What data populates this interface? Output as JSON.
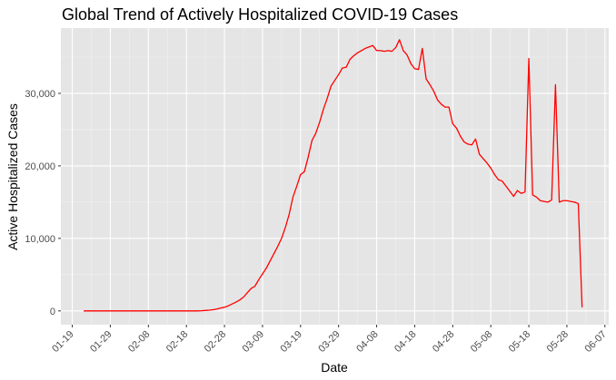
{
  "chart_data": {
    "type": "line",
    "title": "Global Trend of Actively Hospitalized COVID-19 Cases",
    "xlabel": "Date",
    "ylabel": "Active Hospitalized Cases",
    "x_ticks": [
      "01-19",
      "01-29",
      "02-08",
      "02-18",
      "02-28",
      "03-09",
      "03-19",
      "03-29",
      "04-08",
      "04-18",
      "04-28",
      "05-08",
      "05-18",
      "05-28",
      "06-07"
    ],
    "y_ticks": [
      "0",
      "10,000",
      "20,000",
      "30,000"
    ],
    "x_range": [
      "2020-01-16",
      "2020-06-08"
    ],
    "ylim": [
      -1900,
      39000
    ],
    "grid": true,
    "legend": "none",
    "series": [
      {
        "color": "#ff0000",
        "points": [
          [
            "2020-01-22",
            0
          ],
          [
            "2020-02-21",
            0
          ],
          [
            "2020-02-22",
            20
          ],
          [
            "2020-02-23",
            60
          ],
          [
            "2020-02-24",
            100
          ],
          [
            "2020-02-25",
            160
          ],
          [
            "2020-02-26",
            260
          ],
          [
            "2020-02-27",
            400
          ],
          [
            "2020-02-28",
            500
          ],
          [
            "2020-02-29",
            700
          ],
          [
            "2020-03-01",
            950
          ],
          [
            "2020-03-02",
            1200
          ],
          [
            "2020-03-03",
            1500
          ],
          [
            "2020-03-04",
            1900
          ],
          [
            "2020-03-05",
            2500
          ],
          [
            "2020-03-06",
            3100
          ],
          [
            "2020-03-07",
            3400
          ],
          [
            "2020-03-08",
            4300
          ],
          [
            "2020-03-09",
            5100
          ],
          [
            "2020-03-10",
            5900
          ],
          [
            "2020-03-11",
            6900
          ],
          [
            "2020-03-12",
            7900
          ],
          [
            "2020-03-13",
            8900
          ],
          [
            "2020-03-14",
            10000
          ],
          [
            "2020-03-15",
            11500
          ],
          [
            "2020-03-16",
            13300
          ],
          [
            "2020-03-17",
            15700
          ],
          [
            "2020-03-18",
            17200
          ],
          [
            "2020-03-19",
            18800
          ],
          [
            "2020-03-20",
            19200
          ],
          [
            "2020-03-21",
            21200
          ],
          [
            "2020-03-22",
            23500
          ],
          [
            "2020-03-23",
            24500
          ],
          [
            "2020-03-24",
            26000
          ],
          [
            "2020-03-25",
            27800
          ],
          [
            "2020-03-26",
            29300
          ],
          [
            "2020-03-27",
            31000
          ],
          [
            "2020-03-28",
            31800
          ],
          [
            "2020-03-29",
            32600
          ],
          [
            "2020-03-30",
            33500
          ],
          [
            "2020-03-31",
            33600
          ],
          [
            "2020-04-01",
            34700
          ],
          [
            "2020-04-02",
            35200
          ],
          [
            "2020-04-03",
            35600
          ],
          [
            "2020-04-04",
            35900
          ],
          [
            "2020-04-05",
            36200
          ],
          [
            "2020-04-06",
            36400
          ],
          [
            "2020-04-07",
            36600
          ],
          [
            "2020-04-08",
            35900
          ],
          [
            "2020-04-09",
            35900
          ],
          [
            "2020-04-10",
            35800
          ],
          [
            "2020-04-11",
            35900
          ],
          [
            "2020-04-12",
            35800
          ],
          [
            "2020-04-13",
            36300
          ],
          [
            "2020-04-14",
            37400
          ],
          [
            "2020-04-15",
            35900
          ],
          [
            "2020-04-16",
            35300
          ],
          [
            "2020-04-17",
            34100
          ],
          [
            "2020-04-18",
            33400
          ],
          [
            "2020-04-19",
            33300
          ],
          [
            "2020-04-20",
            36200
          ],
          [
            "2020-04-21",
            32000
          ],
          [
            "2020-04-22",
            31200
          ],
          [
            "2020-04-23",
            30300
          ],
          [
            "2020-04-24",
            29100
          ],
          [
            "2020-04-25",
            28500
          ],
          [
            "2020-04-26",
            28100
          ],
          [
            "2020-04-27",
            28100
          ],
          [
            "2020-04-28",
            25800
          ],
          [
            "2020-04-29",
            25200
          ],
          [
            "2020-04-30",
            24100
          ],
          [
            "2020-05-01",
            23300
          ],
          [
            "2020-05-02",
            23000
          ],
          [
            "2020-05-03",
            22900
          ],
          [
            "2020-05-04",
            23700
          ],
          [
            "2020-05-05",
            21600
          ],
          [
            "2020-05-06",
            21000
          ],
          [
            "2020-05-07",
            20400
          ],
          [
            "2020-05-08",
            19700
          ],
          [
            "2020-05-09",
            18800
          ],
          [
            "2020-05-10",
            18100
          ],
          [
            "2020-05-11",
            17900
          ],
          [
            "2020-05-12",
            17200
          ],
          [
            "2020-05-13",
            16500
          ],
          [
            "2020-05-14",
            15800
          ],
          [
            "2020-05-15",
            16600
          ],
          [
            "2020-05-16",
            16200
          ],
          [
            "2020-05-17",
            16400
          ],
          [
            "2020-05-18",
            34800
          ],
          [
            "2020-05-19",
            16000
          ],
          [
            "2020-05-20",
            15700
          ],
          [
            "2020-05-21",
            15200
          ],
          [
            "2020-05-22",
            15100
          ],
          [
            "2020-05-23",
            15000
          ],
          [
            "2020-05-24",
            15300
          ],
          [
            "2020-05-25",
            31200
          ],
          [
            "2020-05-26",
            15000
          ],
          [
            "2020-05-27",
            15200
          ],
          [
            "2020-05-28",
            15200
          ],
          [
            "2020-05-29",
            15100
          ],
          [
            "2020-05-30",
            15000
          ],
          [
            "2020-05-31",
            14800
          ],
          [
            "2020-06-01",
            500
          ]
        ]
      }
    ]
  }
}
